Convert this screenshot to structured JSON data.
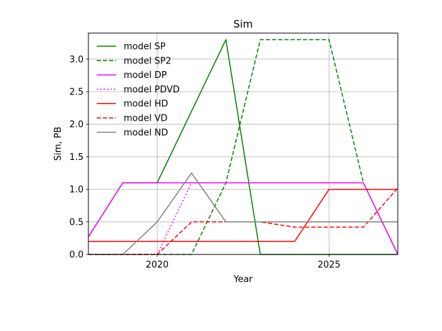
{
  "chart_data": {
    "type": "line",
    "title": "Sim",
    "xlabel": "Year",
    "ylabel": "Sim, PB",
    "xlim": [
      2018,
      2027
    ],
    "ylim": [
      0,
      3.4
    ],
    "xticks": [
      2020,
      2025
    ],
    "xtick_labels": [
      "2020",
      "2025"
    ],
    "yticks": [
      0.0,
      0.5,
      1.0,
      1.5,
      2.0,
      2.5,
      3.0
    ],
    "ytick_labels": [
      "0.0",
      "0.5",
      "1.0",
      "1.5",
      "2.0",
      "2.5",
      "3.0"
    ],
    "grid": true,
    "legend_position": "top-left",
    "series": [
      {
        "name": "model SP",
        "color": "#008000",
        "style": "solid",
        "x": [
          2018,
          2019,
          2020,
          2021,
          2022,
          2023,
          2024,
          2025,
          2026,
          2027
        ],
        "y": [
          0.27,
          1.1,
          1.1,
          2.2,
          3.3,
          0.0,
          0.0,
          0.0,
          0.0,
          0.0
        ]
      },
      {
        "name": "model SP2",
        "color": "#008000",
        "style": "dashed",
        "x": [
          2018,
          2019,
          2020,
          2021,
          2022,
          2023,
          2024,
          2025,
          2026,
          2027
        ],
        "y": [
          0.0,
          0.0,
          0.0,
          0.0,
          1.1,
          3.3,
          3.3,
          3.3,
          1.1,
          0.0
        ]
      },
      {
        "name": "model DP",
        "color": "#ff00ff",
        "style": "solid",
        "x": [
          2018,
          2019,
          2020,
          2021,
          2022,
          2023,
          2024,
          2025,
          2026,
          2027
        ],
        "y": [
          0.27,
          1.1,
          1.1,
          1.1,
          1.1,
          1.1,
          1.1,
          1.1,
          1.1,
          0.0
        ]
      },
      {
        "name": "model PDVD",
        "color": "#ff00ff",
        "style": "dotted",
        "x": [
          2018,
          2019,
          2020,
          2021
        ],
        "y": [
          0.0,
          0.0,
          0.0,
          1.1
        ]
      },
      {
        "name": "model HD",
        "color": "#ff0000",
        "style": "solid",
        "x": [
          2018,
          2019,
          2020,
          2021,
          2022,
          2023,
          2024,
          2025,
          2026,
          2027
        ],
        "y": [
          0.2,
          0.2,
          0.2,
          0.2,
          0.2,
          0.2,
          0.2,
          1.0,
          1.0,
          1.0
        ]
      },
      {
        "name": "model VD",
        "color": "#ff0000",
        "style": "dashed",
        "x": [
          2018,
          2019,
          2020,
          2021,
          2022,
          2023,
          2024,
          2025,
          2026,
          2027
        ],
        "y": [
          0.0,
          0.0,
          0.0,
          0.5,
          0.5,
          0.5,
          0.42,
          0.42,
          0.42,
          1.02
        ]
      },
      {
        "name": "model ND",
        "color": "#808080",
        "style": "solid",
        "x": [
          2018,
          2019,
          2020,
          2021,
          2022,
          2023,
          2024,
          2025,
          2026,
          2027
        ],
        "y": [
          0.0,
          0.0,
          0.5,
          1.25,
          0.5,
          0.5,
          0.5,
          0.5,
          0.5,
          0.5
        ]
      }
    ]
  }
}
